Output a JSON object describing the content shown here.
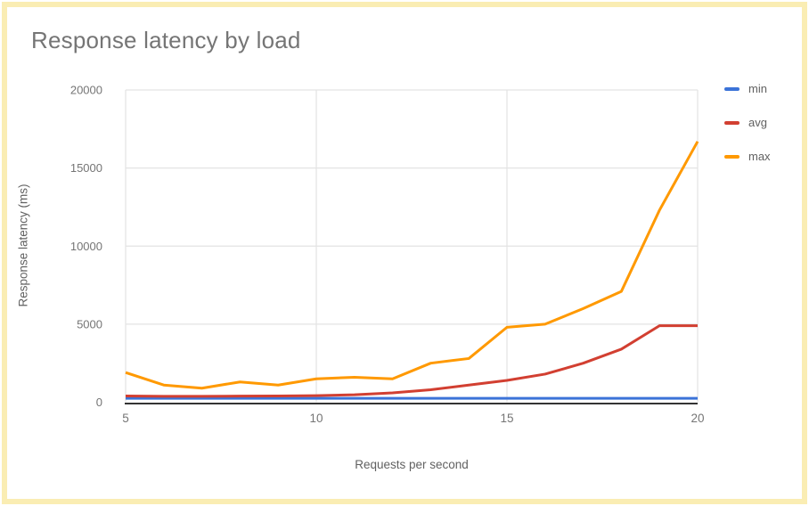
{
  "page": {
    "border_color": "#FAEDB3"
  },
  "colors": {
    "title_text": "#757575",
    "axis_title_text": "#616161",
    "tick_text": "#757575",
    "gridline": "#E3E3E3",
    "axis_line": "#333333",
    "legend_text": "#616161"
  },
  "chart_data": {
    "type": "line",
    "title": "Response latency by load",
    "xlabel": "Requests per second",
    "ylabel": "Response latency (ms)",
    "x": [
      5,
      6,
      7,
      8,
      9,
      10,
      11,
      12,
      13,
      14,
      15,
      16,
      17,
      18,
      19,
      20
    ],
    "series": [
      {
        "name": "min",
        "color": "#3B73D8",
        "values": [
          250,
          250,
          250,
          250,
          250,
          250,
          250,
          250,
          250,
          250,
          250,
          250,
          250,
          250,
          250,
          250
        ]
      },
      {
        "name": "avg",
        "color": "#D23F31",
        "values": [
          400,
          380,
          380,
          390,
          400,
          420,
          480,
          600,
          800,
          1100,
          1400,
          1800,
          2500,
          3400,
          4900,
          4900
        ]
      },
      {
        "name": "max",
        "color": "#FF9900",
        "values": [
          1900,
          1100,
          900,
          1300,
          1100,
          1500,
          1600,
          1500,
          2500,
          2800,
          4800,
          5000,
          6000,
          7100,
          12300,
          16700
        ]
      }
    ],
    "xlim": [
      5,
      20
    ],
    "ylim": [
      0,
      20000
    ],
    "xticks": [
      5,
      10,
      15,
      20
    ],
    "yticks": [
      0,
      5000,
      10000,
      15000,
      20000
    ],
    "grid": true,
    "legend_position": "right"
  }
}
